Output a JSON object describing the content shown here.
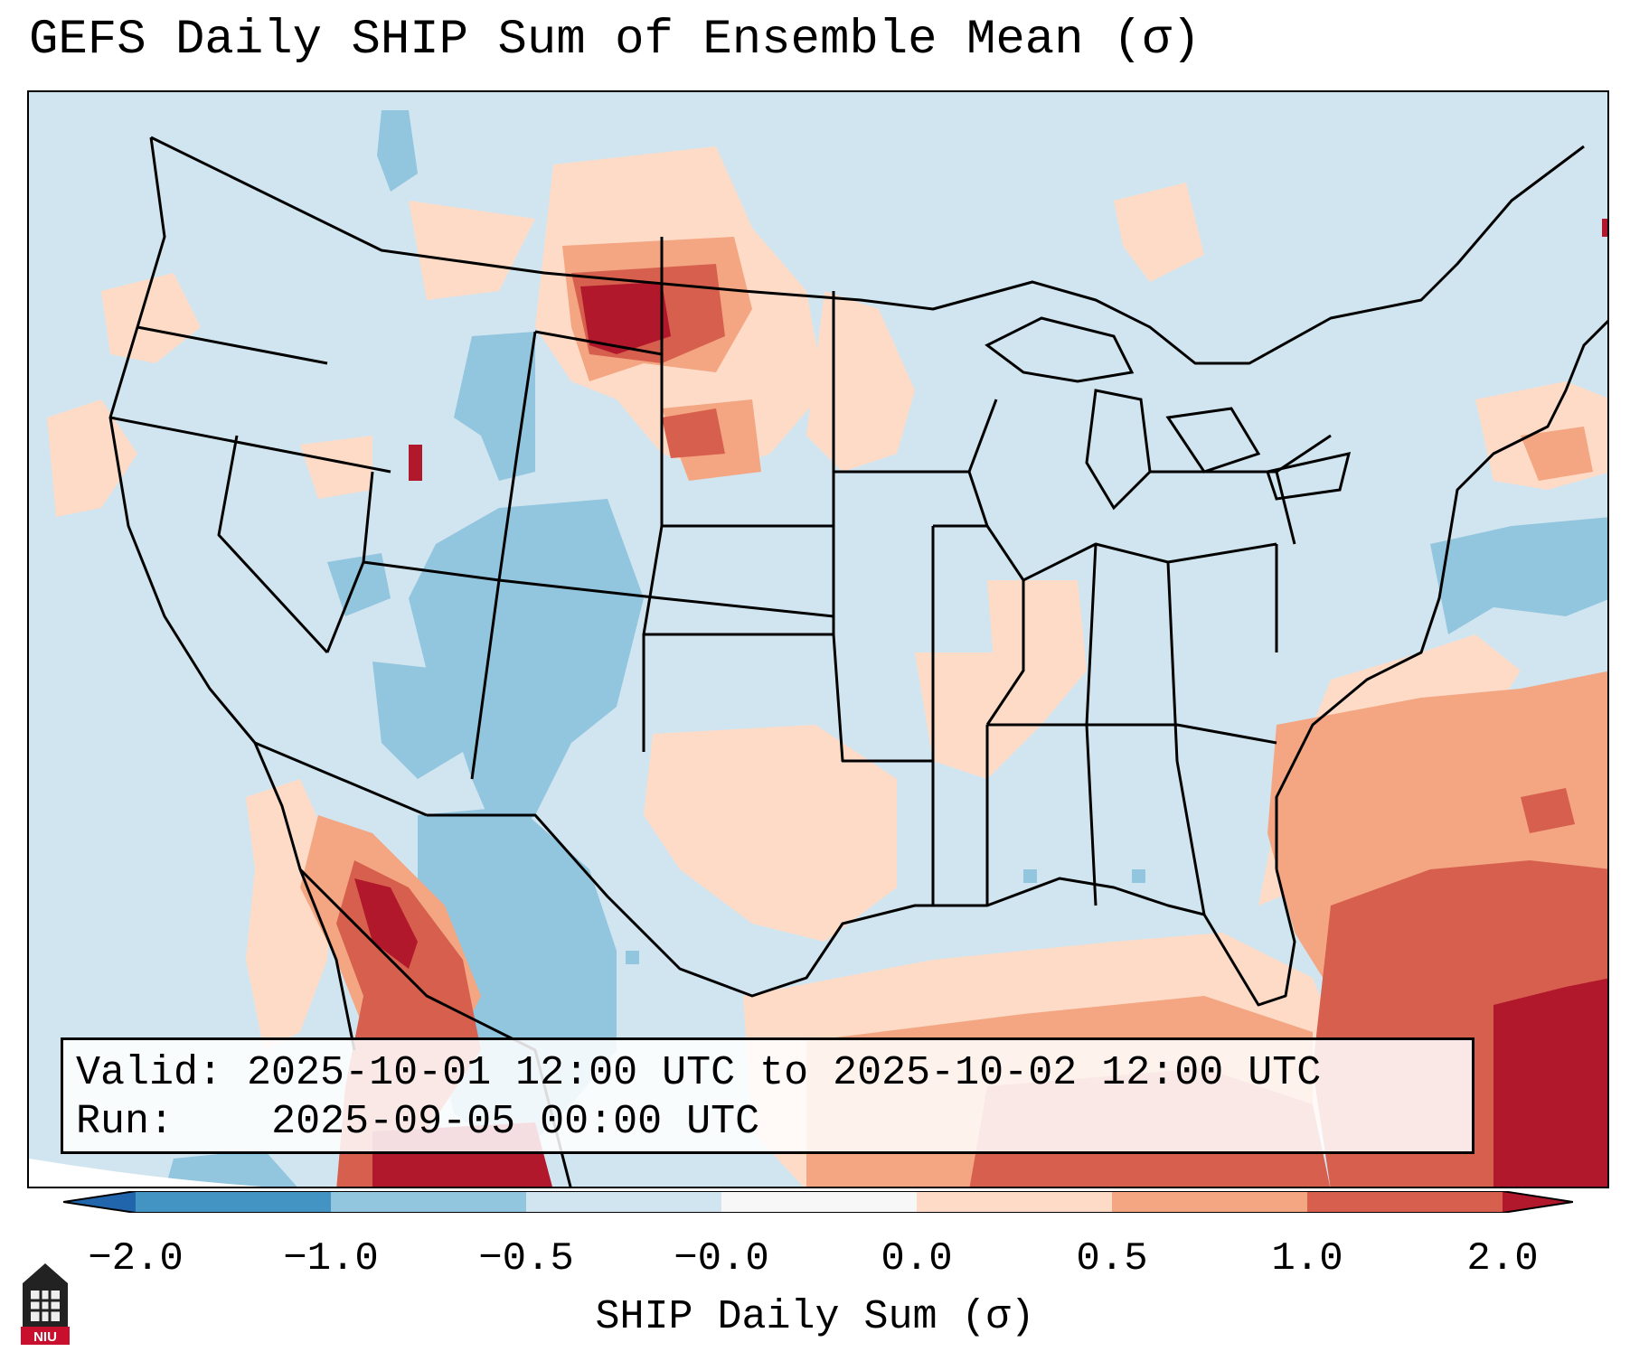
{
  "title": "GEFS Daily SHIP Sum of Ensemble Mean (σ)",
  "info_box": {
    "valid_label": "Valid:",
    "valid_value": "2025-10-01 12:00 UTC to 2025-10-02 12:00 UTC",
    "run_label": "Run:",
    "run_value": "2025-09-05 00:00 UTC"
  },
  "colorbar": {
    "label": "SHIP Daily Sum (σ)",
    "ticks": [
      "−2.0",
      "−1.0",
      "−0.5",
      "−0.0",
      "0.0",
      "0.5",
      "1.0",
      "2.0"
    ],
    "bins": [
      {
        "range": "< -2.0",
        "color": "#2166ac"
      },
      {
        "range": "-2.0 to -1.0",
        "color": "#4393c3"
      },
      {
        "range": "-1.0 to -0.5",
        "color": "#92c5de"
      },
      {
        "range": "-0.5 to -0.0",
        "color": "#d1e5f0"
      },
      {
        "range": "-0.0 to 0.0",
        "color": "#f7f7f7"
      },
      {
        "range": "0.0 to 0.5",
        "color": "#fddbc7"
      },
      {
        "range": "0.5 to 1.0",
        "color": "#f4a582"
      },
      {
        "range": "1.0 to 2.0",
        "color": "#d6604d"
      },
      {
        "range": "> 2.0",
        "color": "#b2182b"
      }
    ]
  },
  "logo": {
    "text": "NIU"
  }
}
